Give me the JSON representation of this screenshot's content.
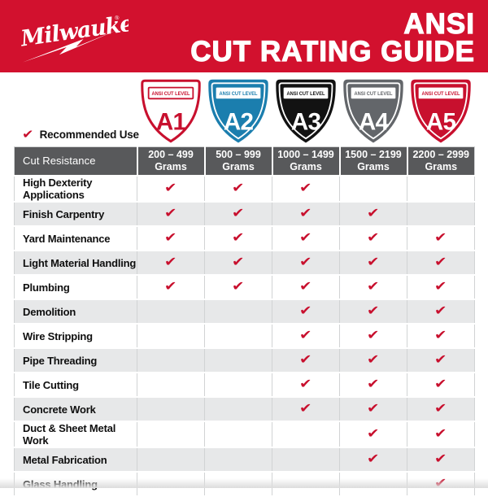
{
  "header": {
    "brand": "Milwaukee",
    "registered_mark": "®",
    "title_line1": "ANSI",
    "title_line2": "CUT RATING GUIDE",
    "bg_color": "#d2112e"
  },
  "legend": {
    "label": "Recommended Use",
    "check_color": "#c8102e"
  },
  "shields": [
    {
      "level": "A1",
      "banner": "ANSI CUT LEVEL",
      "fill": "#ffffff",
      "edge": "#c8102e",
      "inner": "none",
      "banner_stroke": "#c8102e",
      "accent": "#c8102e",
      "letter": "#c8102e"
    },
    {
      "level": "A2",
      "banner": "ANSI CUT LEVEL",
      "fill": "#1b7eae",
      "edge": "#1b7eae",
      "inner": "#ffffff",
      "banner_stroke": "none",
      "accent": "#1b7eae",
      "letter": "#ffffff"
    },
    {
      "level": "A3",
      "banner": "ANSI CUT LEVEL",
      "fill": "#121212",
      "edge": "#121212",
      "inner": "#ffffff",
      "banner_stroke": "none",
      "accent": "#121212",
      "letter": "#ffffff"
    },
    {
      "level": "A4",
      "banner": "ANSI CUT LEVEL",
      "fill": "#63666a",
      "edge": "#63666a",
      "inner": "#ffffff",
      "banner_stroke": "none",
      "accent": "#63666a",
      "letter": "#ffffff"
    },
    {
      "level": "A5",
      "banner": "ANSI CUT LEVEL",
      "fill": "#c8102e",
      "edge": "#c8102e",
      "inner": "#ffffff",
      "banner_stroke": "none",
      "accent": "#c8102e",
      "letter": "#ffffff"
    }
  ],
  "table": {
    "corner_header": "Cut Resistance",
    "check_glyph": "✔",
    "columns": [
      {
        "range": "200 – 499",
        "unit": "Grams"
      },
      {
        "range": "500 – 999",
        "unit": "Grams"
      },
      {
        "range": "1000 – 1499",
        "unit": "Grams"
      },
      {
        "range": "1500 – 2199",
        "unit": "Grams"
      },
      {
        "range": "2200 – 2999",
        "unit": "Grams"
      }
    ],
    "rows": [
      {
        "label": "High Dexterity Applications",
        "checks": [
          true,
          true,
          true,
          false,
          false
        ]
      },
      {
        "label": "Finish Carpentry",
        "checks": [
          true,
          true,
          true,
          true,
          false
        ]
      },
      {
        "label": "Yard Maintenance",
        "checks": [
          true,
          true,
          true,
          true,
          true
        ]
      },
      {
        "label": "Light Material Handling",
        "checks": [
          true,
          true,
          true,
          true,
          true
        ]
      },
      {
        "label": "Plumbing",
        "checks": [
          true,
          true,
          true,
          true,
          true
        ]
      },
      {
        "label": "Demolition",
        "checks": [
          false,
          false,
          true,
          true,
          true
        ]
      },
      {
        "label": "Wire Stripping",
        "checks": [
          false,
          false,
          true,
          true,
          true
        ]
      },
      {
        "label": "Pipe Threading",
        "checks": [
          false,
          false,
          true,
          true,
          true
        ]
      },
      {
        "label": "Tile Cutting",
        "checks": [
          false,
          false,
          true,
          true,
          true
        ]
      },
      {
        "label": "Concrete Work",
        "checks": [
          false,
          false,
          true,
          true,
          true
        ]
      },
      {
        "label": "Duct & Sheet Metal Work",
        "checks": [
          false,
          false,
          false,
          true,
          true
        ]
      },
      {
        "label": "Metal Fabrication",
        "checks": [
          false,
          false,
          false,
          true,
          true
        ]
      },
      {
        "label": "Glass Handling",
        "checks": [
          false,
          false,
          false,
          false,
          true
        ]
      }
    ],
    "colors": {
      "header_bg": "#58595b",
      "alt_row_bg": "#e7e8e9",
      "grid_line": "#d1d3d4",
      "check": "#c8102e"
    }
  }
}
